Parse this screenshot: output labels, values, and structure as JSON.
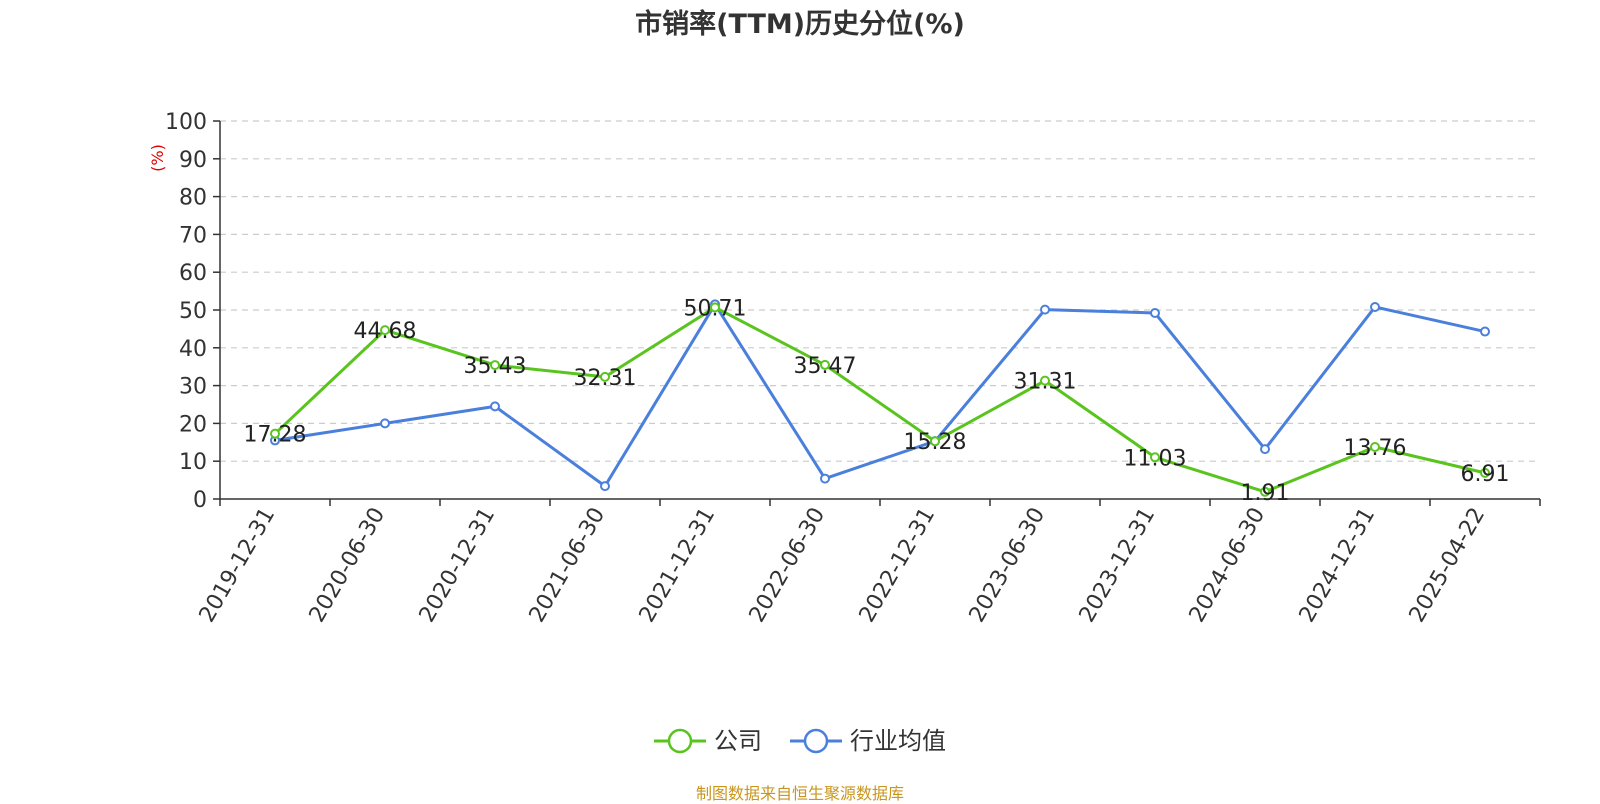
{
  "page_title": "市销率(TTM)历史分位(%)",
  "source_note": "制图数据来自恒生聚源数据库",
  "chart_data": {
    "type": "line",
    "title": "市销率(TTM)历史分位(%)",
    "ylabel": "(%)",
    "xlabel": "",
    "ylim": [
      0,
      100
    ],
    "yticks": [
      0,
      10,
      20,
      30,
      40,
      50,
      60,
      70,
      80,
      90,
      100
    ],
    "grid": true,
    "legend_position": "bottom-center",
    "categories": [
      "2019-12-31",
      "2020-06-30",
      "2020-12-31",
      "2021-06-30",
      "2021-12-31",
      "2022-06-30",
      "2022-12-31",
      "2023-06-30",
      "2023-12-31",
      "2024-06-30",
      "2024-12-31",
      "2025-04-22"
    ],
    "series": [
      {
        "name": "公司",
        "color": "#5ac41e",
        "show_labels": true,
        "values": [
          17.28,
          44.68,
          35.43,
          32.31,
          50.71,
          35.47,
          15.28,
          31.31,
          11.03,
          1.91,
          13.76,
          6.91
        ]
      },
      {
        "name": "行业均值",
        "color": "#4a7fdc",
        "show_labels": false,
        "values": [
          15.5,
          20.0,
          24.5,
          3.4,
          51.5,
          5.4,
          15.3,
          50.1,
          49.2,
          13.2,
          50.8,
          44.3
        ]
      }
    ]
  }
}
